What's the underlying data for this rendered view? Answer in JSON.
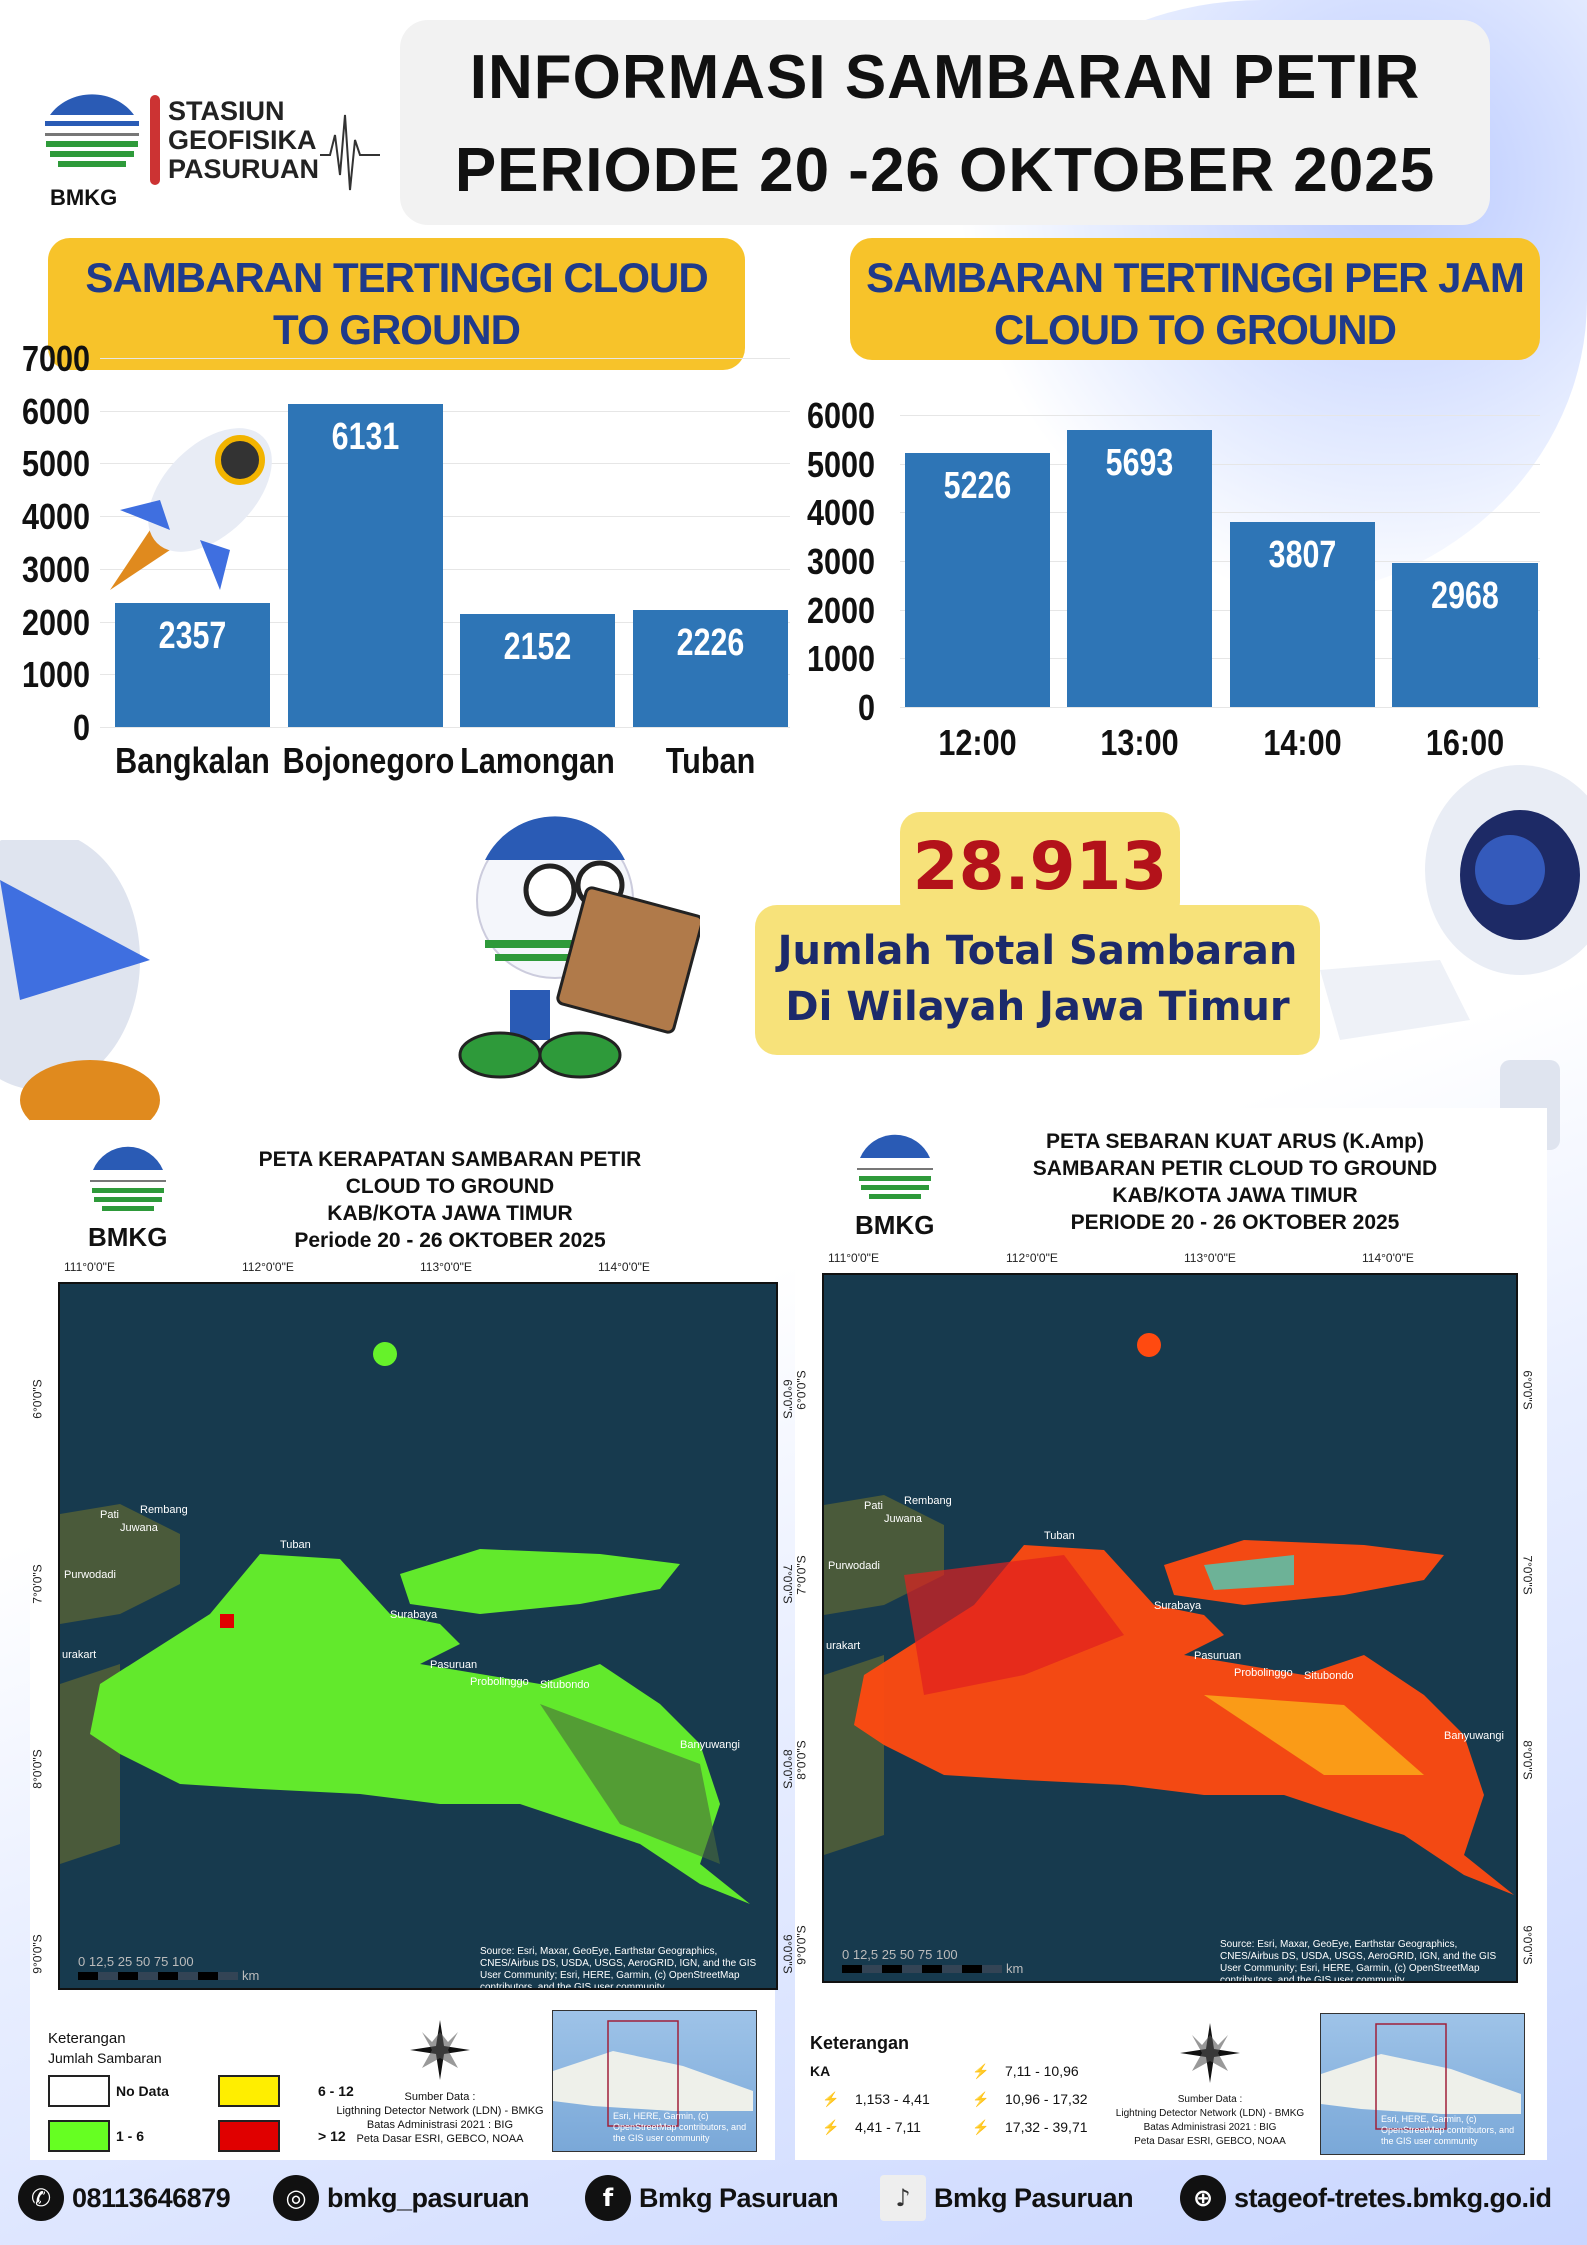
{
  "header": {
    "line1": "INFORMASI SAMBARAN PETIR",
    "line2": "PERIODE 20 -26  OKTOBER 2025"
  },
  "logo": {
    "org_line1": "STASIUN",
    "org_line2": "GEOFISIKA",
    "org_line3": "PASURUAN",
    "abbr": "BMKG"
  },
  "left_banner": {
    "line1": "SAMBARAN TERTINGGI  CLOUD",
    "line2": "TO GROUND"
  },
  "right_banner": {
    "line1": "SAMBARAN TERTINGGI PER JAM",
    "line2": "CLOUD TO GROUND"
  },
  "chart_data": [
    {
      "type": "bar",
      "categories": [
        "Bangkalan",
        "Bojonegoro",
        "Lamongan",
        "Tuban"
      ],
      "values": [
        2357,
        6131,
        2152,
        2226
      ],
      "ylim": [
        0,
        7000
      ],
      "yticks": [
        "7000",
        "6000",
        "5000",
        "4000",
        "3000",
        "2000",
        "1000",
        "0"
      ],
      "grid": true,
      "color": "#2e75b6"
    },
    {
      "type": "bar",
      "categories": [
        "12:00",
        "13:00",
        "14:00",
        "16:00"
      ],
      "values": [
        5226,
        5693,
        3807,
        2968
      ],
      "ylim": [
        0,
        6000
      ],
      "yticks": [
        "6000",
        "5000",
        "4000",
        "3000",
        "2000",
        "1000",
        "0"
      ],
      "grid": true,
      "color": "#2e75b6"
    }
  ],
  "total": {
    "value": "28.913",
    "label1": "Jumlah Total Sambaran",
    "label2": "Di Wilayah Jawa Timur"
  },
  "map_left": {
    "logo": "BMKG",
    "title": [
      "PETA KERAPATAN SAMBARAN PETIR",
      "CLOUD TO GROUND",
      "KAB/KOTA JAWA TIMUR",
      "Periode 20 - 26 OKTOBER  2025"
    ],
    "lon_labels": [
      "111°0'0\"E",
      "112°0'0\"E",
      "113°0'0\"E",
      "114°0'0\"E"
    ],
    "lat_labels": [
      "6°0'0\"S",
      "7°0'0\"S",
      "8°0'0\"S",
      "9°0'0\"S"
    ],
    "places": [
      "Pati",
      "Rembang",
      "Juwana",
      "Tuban",
      "Purwodadi",
      "Pasuruan",
      "Probolinggo",
      "Situbondo",
      "Banyuwangi",
      "Surabaya",
      "urakart"
    ],
    "scale": "0 12,5 25    50    75    100",
    "scale_unit": "km",
    "source": "Source: Esri, Maxar, GeoEye, Earthstar Geographics, CNES/Airbus DS, USDA, USGS, AeroGRID, IGN, and the GIS User Community; Esri, HERE, Garmin, (c) OpenStreetMap contributors, and the GIS user community",
    "legend": {
      "heading": "Keterangan",
      "subheading": "Jumlah Sambaran",
      "items": [
        {
          "label": "No Data",
          "color": "#ffffff"
        },
        {
          "label": "6 - 12",
          "color": "#ffee00"
        },
        {
          "label": "1 - 6",
          "color": "#66ff22"
        },
        {
          "label": "> 12",
          "color": "#e00000"
        }
      ]
    },
    "data_source": [
      "Sumber Data :",
      "Ligthning Detector Network (LDN) - BMKG",
      "Batas Administrasi 2021  : BIG",
      "Peta Dasar ESRI, GEBCO, NOAA"
    ],
    "inset_credit": "Esri, HERE, Garmin, (c) OpenStreetMap contributors, and the GIS user community",
    "compass": [
      "N",
      "E",
      "S",
      "W"
    ]
  },
  "map_right": {
    "logo": "BMKG",
    "title": [
      "PETA SEBARAN KUAT ARUS (K.Amp)",
      "SAMBARAN PETIR CLOUD TO GROUND",
      "KAB/KOTA JAWA TIMUR",
      "PERIODE 20 - 26 OKTOBER  2025"
    ],
    "lon_labels": [
      "111°0'0\"E",
      "112°0'0\"E",
      "113°0'0\"E",
      "114°0'0\"E"
    ],
    "lat_labels": [
      "6°0'0\"S",
      "7°0'0\"S",
      "8°0'0\"S",
      "9°0'0\"S"
    ],
    "places": [
      "Pati",
      "Rembang",
      "Juwana",
      "Tuban",
      "Purwodadi",
      "Pasuruan",
      "Probolinggo",
      "Situbondo",
      "Banyuwangi",
      "Surabaya",
      "urakart"
    ],
    "scale": "0 12,5 25    50    75    100",
    "scale_unit": "km",
    "source": "Source: Esri, Maxar, GeoEye, Earthstar Geographics, CNES/Airbus DS, USDA, USGS, AeroGRID, IGN, and the GIS User Community; Esri, HERE, Garmin, (c) OpenStreetMap contributors, and the GIS user community",
    "legend": {
      "heading": "Keterangan",
      "subheading": "KA",
      "items": [
        {
          "label": "1,153 - 4,41",
          "color": "#33e0d0"
        },
        {
          "label": "4,41 - 7,11",
          "color": "#ffee00"
        },
        {
          "label": "7,11 - 10,96",
          "color": "#ff8c1a"
        },
        {
          "label": "10,96 - 17,32",
          "color": "#e02020"
        },
        {
          "label": "17,32 - 39,71",
          "color": "#a00010"
        }
      ]
    },
    "data_source": [
      "Sumber Data :",
      "Lightning Detector Network (LDN) - BMKG",
      "Batas Administrasi 2021  : BIG",
      "Peta Dasar ESRI, GEBCO, NOAA"
    ],
    "inset_credit": "Esri, HERE, Garmin, (c) OpenStreetMap contributors, and the GIS user community",
    "compass": [
      "N",
      "E",
      "S",
      "W"
    ]
  },
  "footer": [
    {
      "icon": "whatsapp-icon",
      "glyph": "✆",
      "text": "08113646879"
    },
    {
      "icon": "instagram-icon",
      "glyph": "◎",
      "text": "bmkg_pasuruan"
    },
    {
      "icon": "facebook-icon",
      "glyph": "f",
      "text": "Bmkg Pasuruan"
    },
    {
      "icon": "tiktok-icon",
      "glyph": "♪",
      "text": "Bmkg Pasuruan"
    },
    {
      "icon": "globe-icon",
      "glyph": "⊕",
      "text": "stageof-tretes.bmkg.go.id"
    }
  ]
}
